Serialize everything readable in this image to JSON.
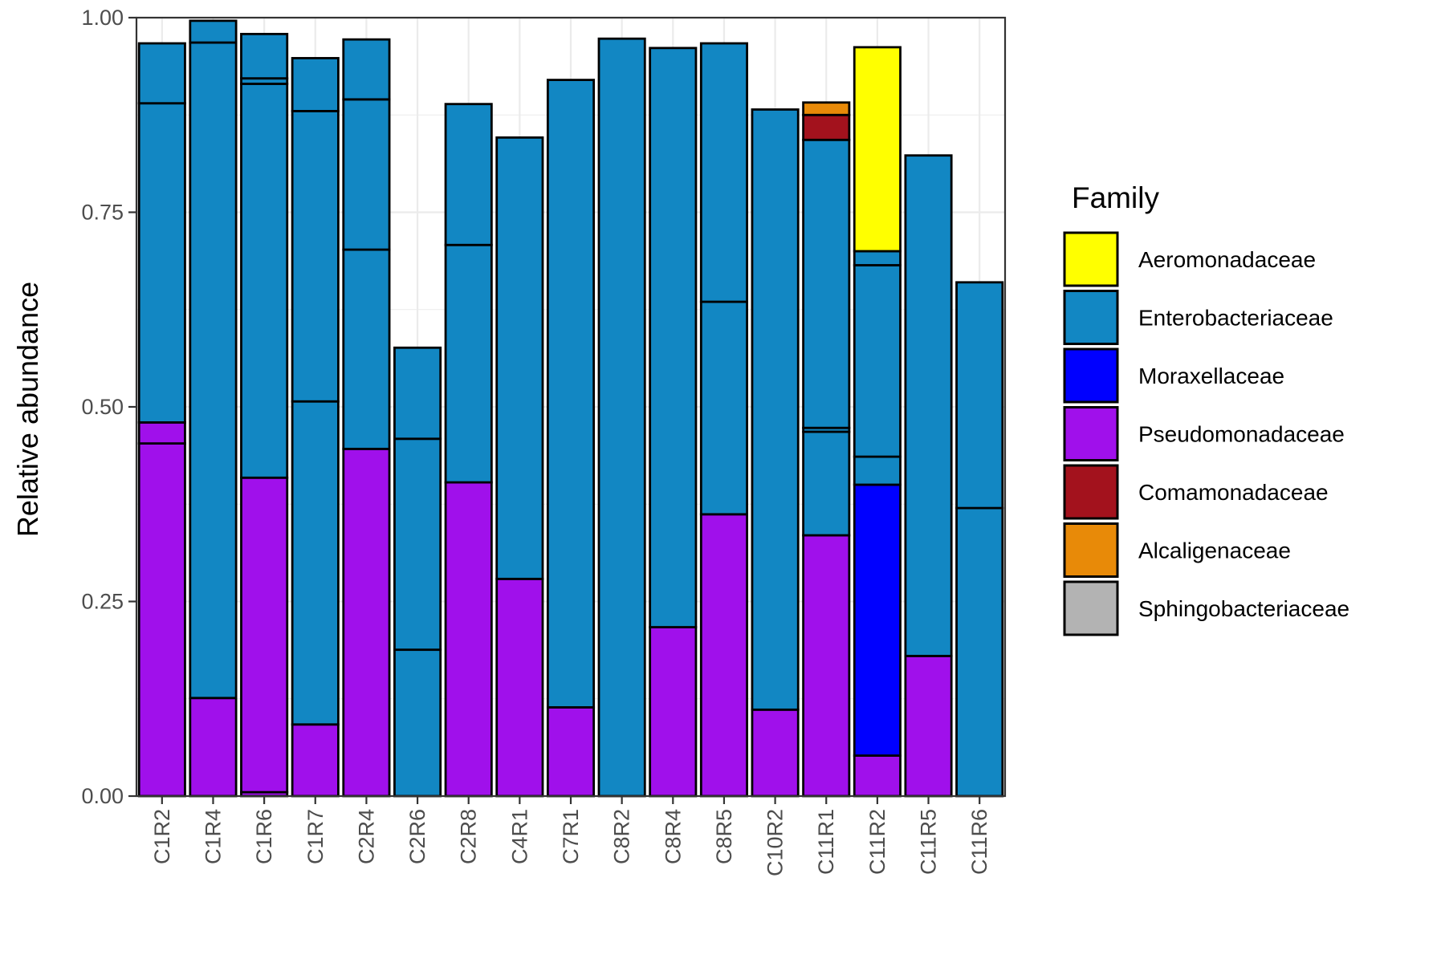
{
  "chart_data": {
    "type": "bar",
    "stacked": true,
    "ylabel": "Relative abundance",
    "xlabel": "",
    "ylim": [
      0,
      1
    ],
    "yticks": [
      "0.00",
      "0.25",
      "0.50",
      "0.75",
      "1.00"
    ],
    "grid": true,
    "legend": {
      "title": "Family",
      "placement": "right",
      "entries": [
        {
          "name": "Aeromonadaceae",
          "color": "#FFFF00"
        },
        {
          "name": "Enterobacteriaceae",
          "color": "#1287C3"
        },
        {
          "name": "Moraxellaceae",
          "color": "#0000FF"
        },
        {
          "name": "Pseudomonadaceae",
          "color": "#A010EB"
        },
        {
          "name": "Comamonadaceae",
          "color": "#A3121D"
        },
        {
          "name": "Alcaligenaceae",
          "color": "#E88A08"
        },
        {
          "name": "Sphingobacteriaceae",
          "color": "#B3B3B3"
        }
      ]
    },
    "categories": [
      "C1R2",
      "C1R4",
      "C1R6",
      "C1R7",
      "C2R4",
      "C2R6",
      "C2R8",
      "C4R1",
      "C7R1",
      "C8R2",
      "C8R4",
      "C8R5",
      "C10R2",
      "C11R1",
      "C11R2",
      "C11R5",
      "C11R6"
    ],
    "bars": [
      {
        "category": "C1R2",
        "segments": [
          {
            "family": "Pseudomonadaceae",
            "value": 0.453
          },
          {
            "family": "Pseudomonadaceae",
            "value": 0.027
          },
          {
            "family": "Enterobacteriaceae",
            "value": 0.41
          },
          {
            "family": "Enterobacteriaceae",
            "value": 0.077
          }
        ]
      },
      {
        "category": "C1R4",
        "segments": [
          {
            "family": "Pseudomonadaceae",
            "value": 0.126
          },
          {
            "family": "Enterobacteriaceae",
            "value": 0.842
          },
          {
            "family": "Enterobacteriaceae",
            "value": 0.028
          }
        ]
      },
      {
        "category": "C1R6",
        "segments": [
          {
            "family": "Pseudomonadaceae",
            "value": 0.005
          },
          {
            "family": "Pseudomonadaceae",
            "value": 0.404
          },
          {
            "family": "Enterobacteriaceae",
            "value": 0.506
          },
          {
            "family": "Enterobacteriaceae",
            "value": 0.007
          },
          {
            "family": "Enterobacteriaceae",
            "value": 0.057
          }
        ]
      },
      {
        "category": "C1R7",
        "segments": [
          {
            "family": "Pseudomonadaceae",
            "value": 0.092
          },
          {
            "family": "Enterobacteriaceae",
            "value": 0.415
          },
          {
            "family": "Enterobacteriaceae",
            "value": 0.373
          },
          {
            "family": "Enterobacteriaceae",
            "value": 0.068
          }
        ]
      },
      {
        "category": "C2R4",
        "segments": [
          {
            "family": "Pseudomonadaceae",
            "value": 0.446
          },
          {
            "family": "Enterobacteriaceae",
            "value": 0.256
          },
          {
            "family": "Enterobacteriaceae",
            "value": 0.193
          },
          {
            "family": "Enterobacteriaceae",
            "value": 0.077
          }
        ]
      },
      {
        "category": "C2R6",
        "segments": [
          {
            "family": "Enterobacteriaceae",
            "value": 0.188
          },
          {
            "family": "Enterobacteriaceae",
            "value": 0.271
          },
          {
            "family": "Enterobacteriaceae",
            "value": 0.117
          }
        ]
      },
      {
        "category": "C2R8",
        "segments": [
          {
            "family": "Pseudomonadaceae",
            "value": 0.403
          },
          {
            "family": "Enterobacteriaceae",
            "value": 0.305
          },
          {
            "family": "Enterobacteriaceae",
            "value": 0.181
          }
        ]
      },
      {
        "category": "C4R1",
        "segments": [
          {
            "family": "Pseudomonadaceae",
            "value": 0.279
          },
          {
            "family": "Enterobacteriaceae",
            "value": 0.567
          }
        ]
      },
      {
        "category": "C7R1",
        "segments": [
          {
            "family": "Pseudomonadaceae",
            "value": 0.114
          },
          {
            "family": "Enterobacteriaceae",
            "value": 0.806
          }
        ]
      },
      {
        "category": "C8R2",
        "segments": [
          {
            "family": "Enterobacteriaceae",
            "value": 0.973
          }
        ]
      },
      {
        "category": "C8R4",
        "segments": [
          {
            "family": "Pseudomonadaceae",
            "value": 0.217
          },
          {
            "family": "Enterobacteriaceae",
            "value": 0.744
          }
        ]
      },
      {
        "category": "C8R5",
        "segments": [
          {
            "family": "Pseudomonadaceae",
            "value": 0.362
          },
          {
            "family": "Enterobacteriaceae",
            "value": 0.273
          },
          {
            "family": "Enterobacteriaceae",
            "value": 0.332
          }
        ]
      },
      {
        "category": "C10R2",
        "segments": [
          {
            "family": "Pseudomonadaceae",
            "value": 0.111
          },
          {
            "family": "Enterobacteriaceae",
            "value": 0.771
          }
        ]
      },
      {
        "category": "C11R1",
        "segments": [
          {
            "family": "Pseudomonadaceae",
            "value": 0.335
          },
          {
            "family": "Enterobacteriaceae",
            "value": 0.133
          },
          {
            "family": "Enterobacteriaceae",
            "value": 0.005
          },
          {
            "family": "Enterobacteriaceae",
            "value": 0.37
          },
          {
            "family": "Comamonadaceae",
            "value": 0.032
          },
          {
            "family": "Alcaligenaceae",
            "value": 0.016
          }
        ]
      },
      {
        "category": "C11R2",
        "segments": [
          {
            "family": "Pseudomonadaceae",
            "value": 0.052
          },
          {
            "family": "Moraxellaceae",
            "value": 0.348
          },
          {
            "family": "Enterobacteriaceae",
            "value": 0.036
          },
          {
            "family": "Enterobacteriaceae",
            "value": 0.246
          },
          {
            "family": "Enterobacteriaceae",
            "value": 0.018
          },
          {
            "family": "Aeromonadaceae",
            "value": 0.262
          }
        ]
      },
      {
        "category": "C11R5",
        "segments": [
          {
            "family": "Pseudomonadaceae",
            "value": 0.18
          },
          {
            "family": "Enterobacteriaceae",
            "value": 0.643
          }
        ]
      },
      {
        "category": "C11R6",
        "segments": [
          {
            "family": "Enterobacteriaceae",
            "value": 0.37
          },
          {
            "family": "Enterobacteriaceae",
            "value": 0.29
          }
        ]
      }
    ]
  }
}
